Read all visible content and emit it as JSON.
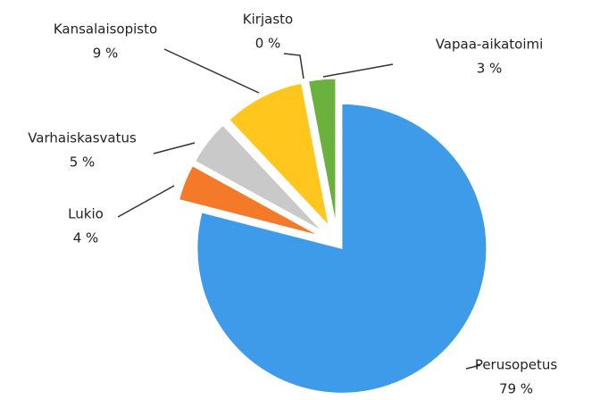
{
  "chart_data": {
    "type": "pie",
    "categories": [
      "Perusopetus",
      "Lukio",
      "Varhaiskasvatus",
      "Kansalaisopisto",
      "Kirjasto",
      "Vapaa-aikatoimi"
    ],
    "values": [
      79,
      4,
      5,
      9,
      0,
      3
    ],
    "value_labels": [
      "79 %",
      "4 %",
      "5 %",
      "9 %",
      "0 %",
      "3 %"
    ],
    "colors": [
      "#3d9be9",
      "#f47a2a",
      "#c9c9c9",
      "#ffc61e",
      "#a0a0a0",
      "#6ab13d"
    ]
  }
}
